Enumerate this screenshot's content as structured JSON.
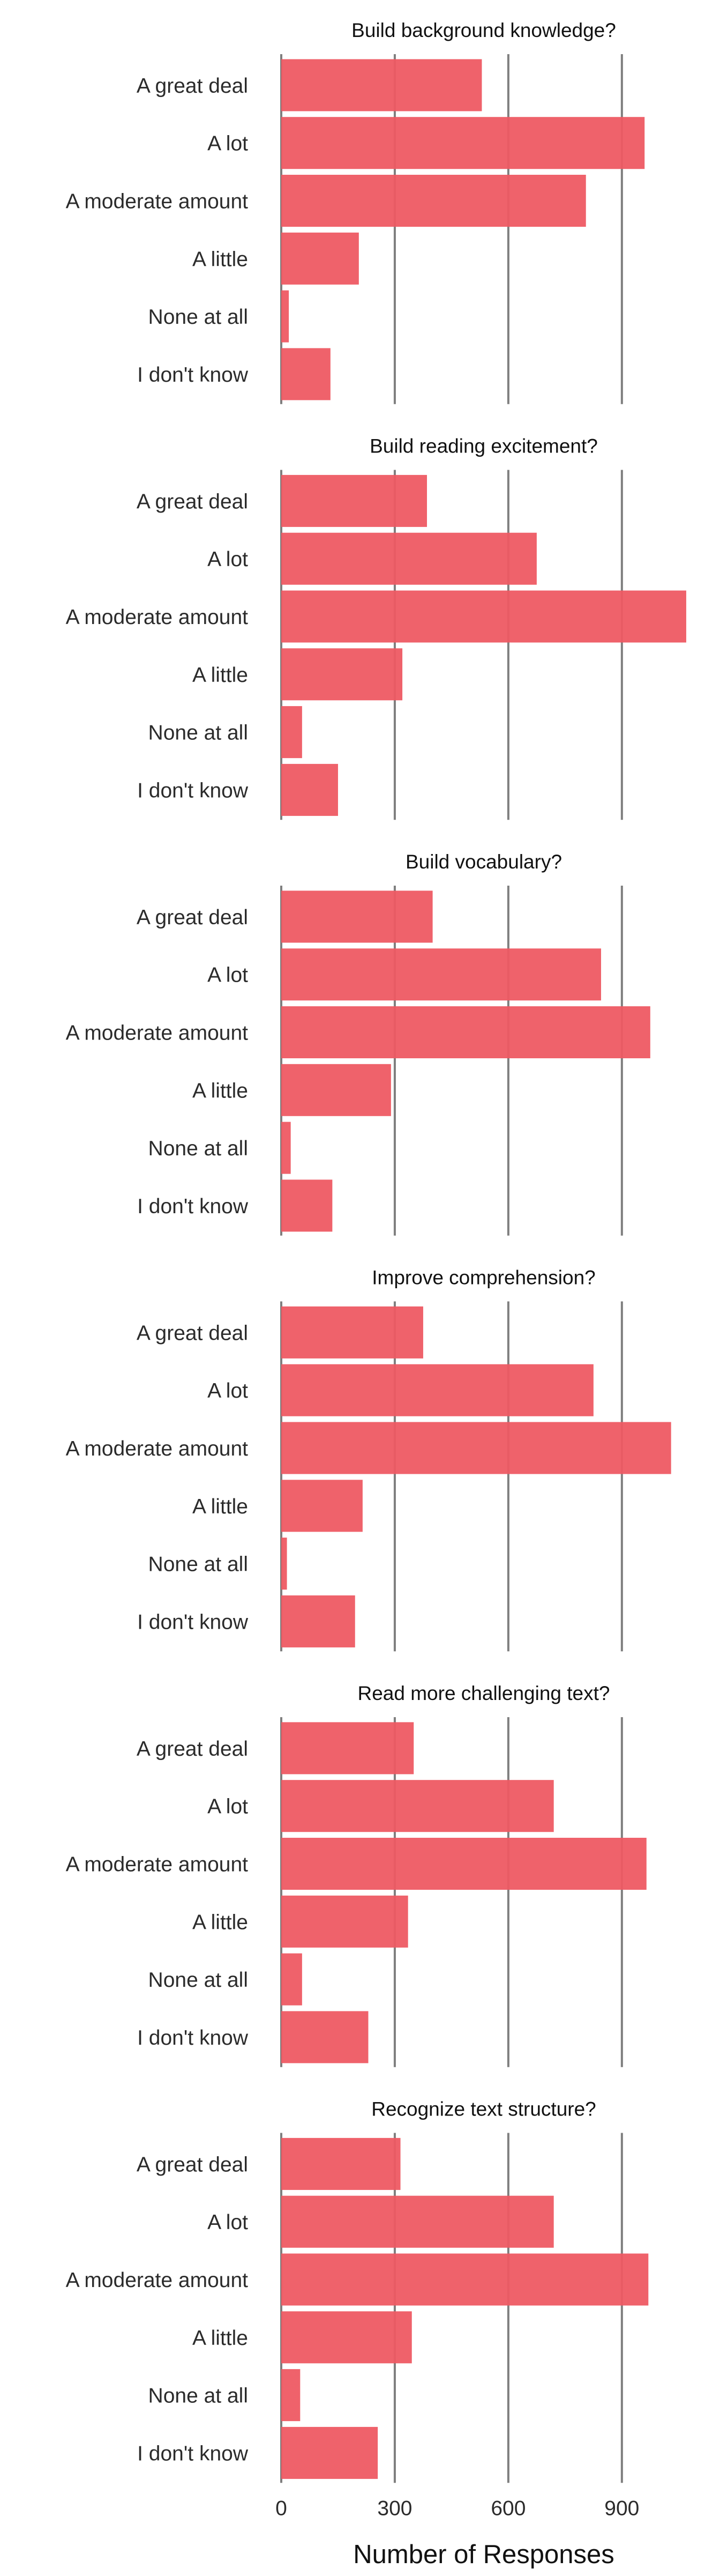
{
  "chart_data": {
    "type": "bar",
    "orientation": "horizontal",
    "xlabel": "Number of Responses",
    "xlim": [
      0,
      1070
    ],
    "xticks": [
      0,
      300,
      600,
      900
    ],
    "grid": "vertical",
    "bar_color": "#EE5A63",
    "gridline_color": "#7f7f7f",
    "categories": [
      "A great deal",
      "A lot",
      "A moderate amount",
      "A little",
      "None at all",
      "I don't know"
    ],
    "panels": [
      {
        "title": "Build background knowledge?",
        "values": [
          530,
          960,
          805,
          205,
          20,
          130
        ]
      },
      {
        "title": "Build reading excitement?",
        "values": [
          385,
          675,
          1070,
          320,
          55,
          150
        ]
      },
      {
        "title": "Build vocabulary?",
        "values": [
          400,
          845,
          975,
          290,
          25,
          135
        ]
      },
      {
        "title": "Improve comprehension?",
        "values": [
          375,
          825,
          1030,
          215,
          15,
          195
        ]
      },
      {
        "title": "Read more challenging text?",
        "values": [
          350,
          720,
          965,
          335,
          55,
          230
        ]
      },
      {
        "title": "Recognize text structure?",
        "values": [
          315,
          720,
          970,
          345,
          50,
          255
        ]
      }
    ]
  }
}
